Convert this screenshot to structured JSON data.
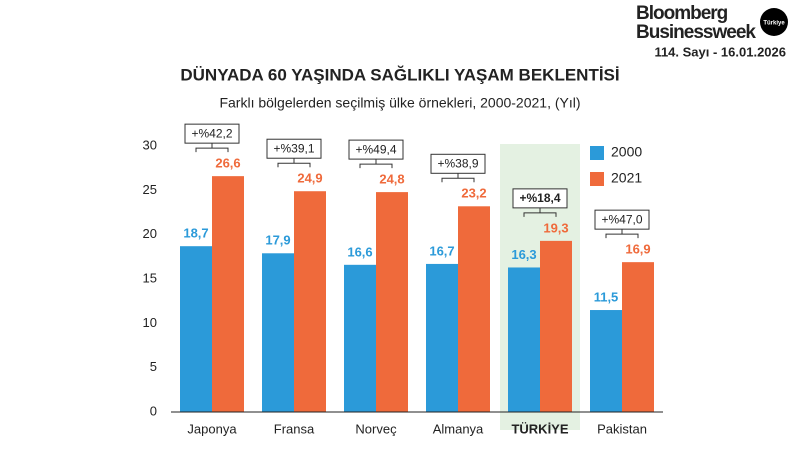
{
  "header": {
    "logo_line1": "Bloomberg",
    "logo_line2": "Businessweek",
    "logo_badge": "Türkiye",
    "issue": "114. Sayı - 16.01.2026"
  },
  "chart_data": {
    "type": "bar",
    "title": "DÜNYADA 60 YAŞINDA SAĞLIKLI YAŞAM BEKLENTİSİ",
    "subtitle": "Farklı bölgelerden seçilmiş ülke örnekleri, 2000-2021, (Yıl)",
    "categories": [
      "Japonya",
      "Fransa",
      "Norveç",
      "Almanya",
      "TÜRKİYE",
      "Pakistan"
    ],
    "series": [
      {
        "name": "2000",
        "color": "#2b9ad9",
        "values": [
          18.7,
          17.9,
          16.6,
          16.7,
          16.3,
          11.5
        ],
        "value_labels": [
          "18,7",
          "17,9",
          "16,6",
          "16,7",
          "16,3",
          "11,5"
        ]
      },
      {
        "name": "2021",
        "color": "#ef6a3b",
        "values": [
          26.6,
          24.9,
          24.8,
          23.2,
          19.3,
          16.9
        ],
        "value_labels": [
          "26,6",
          "24,9",
          "24,8",
          "23,2",
          "19,3",
          "16,9"
        ]
      }
    ],
    "change_labels": [
      "+%42,2",
      "+%39,1",
      "+%49,4",
      "+%38,9",
      "+%18,4",
      "+%47,0"
    ],
    "highlight_index": 4,
    "highlight_color": "#e4f1e2",
    "ylim": [
      0,
      30
    ],
    "yticks": [
      0,
      5,
      10,
      15,
      20,
      25,
      30
    ],
    "grid": false,
    "legend": "top-right"
  }
}
